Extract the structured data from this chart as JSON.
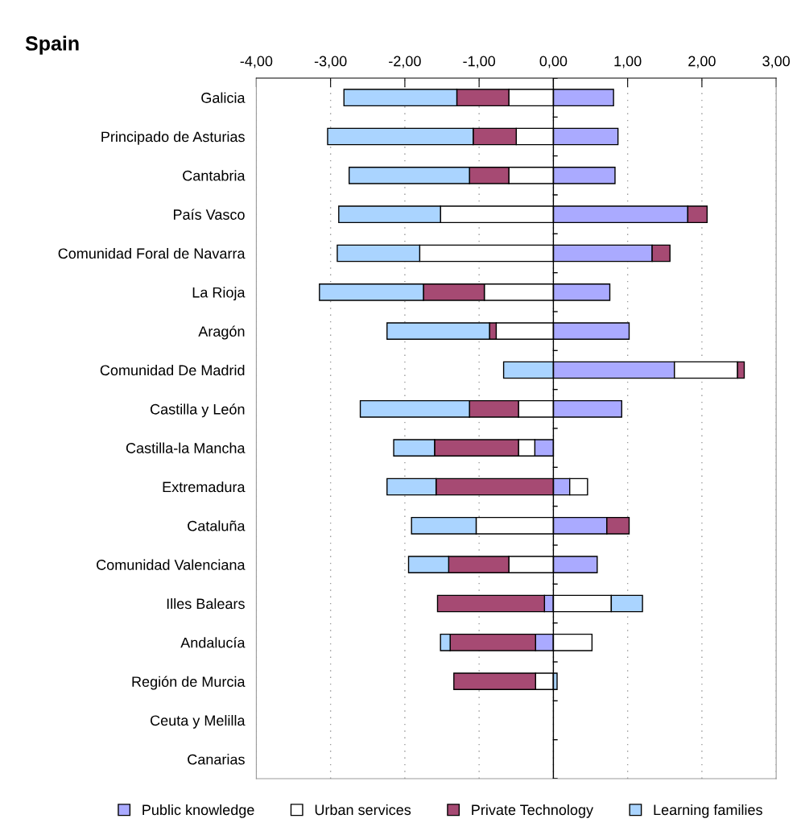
{
  "chart_data": {
    "type": "bar",
    "orientation": "horizontal",
    "stacked": true,
    "title": "Spain",
    "categories": [
      "Galicia",
      "Principado de Asturias",
      "Cantabria",
      "País Vasco",
      "Comunidad Foral de Navarra",
      "La Rioja",
      "Aragón",
      "Comunidad De Madrid",
      "Castilla y León",
      "Castilla-la Mancha",
      "Extremadura",
      "Cataluña",
      "Comunidad Valenciana",
      "Illes Balears",
      "Andalucía",
      "Región de Murcia",
      "Ceuta y Melilla",
      "Canarias"
    ],
    "series": [
      {
        "name": "Public knowledge",
        "color": "#aaaaff",
        "values": [
          0.81,
          0.87,
          0.83,
          1.81,
          1.33,
          0.76,
          1.02,
          1.63,
          0.92,
          -0.25,
          0.22,
          0.72,
          0.59,
          -0.12,
          -0.24,
          null,
          null,
          null
        ]
      },
      {
        "name": "Urban services",
        "color": "#ffffff",
        "values": [
          -0.6,
          -0.5,
          -0.6,
          -1.52,
          -1.8,
          -0.93,
          -0.77,
          0.85,
          -0.47,
          -0.22,
          0.24,
          -1.04,
          -0.6,
          0.78,
          0.52,
          -0.24,
          null,
          null
        ]
      },
      {
        "name": "Private Technology",
        "color": "#a64a73",
        "values": [
          -0.7,
          -0.58,
          -0.53,
          0.26,
          0.24,
          -0.82,
          -0.09,
          0.09,
          -0.66,
          -1.13,
          -1.58,
          0.3,
          -0.81,
          -1.44,
          -1.15,
          -1.1,
          null,
          null
        ]
      },
      {
        "name": "Learning families",
        "color": "#aad4ff",
        "values": [
          -1.52,
          -1.96,
          -1.62,
          -1.37,
          -1.11,
          -1.4,
          -1.38,
          -0.67,
          -1.47,
          -0.55,
          -0.66,
          -0.87,
          -0.54,
          0.42,
          -0.13,
          0.05,
          null,
          null
        ]
      }
    ],
    "xlim": [
      -4,
      3
    ],
    "xticks": [
      {
        "value": -4,
        "label": "-4,00"
      },
      {
        "value": -3,
        "label": "-3,00"
      },
      {
        "value": -2,
        "label": "-2,00"
      },
      {
        "value": -1,
        "label": "-1,00"
      },
      {
        "value": 0,
        "label": "0,00"
      },
      {
        "value": 1,
        "label": "1,00"
      },
      {
        "value": 2,
        "label": "2,00"
      },
      {
        "value": 3,
        "label": "3,00"
      }
    ],
    "grid": "x",
    "legend": "bottom"
  }
}
